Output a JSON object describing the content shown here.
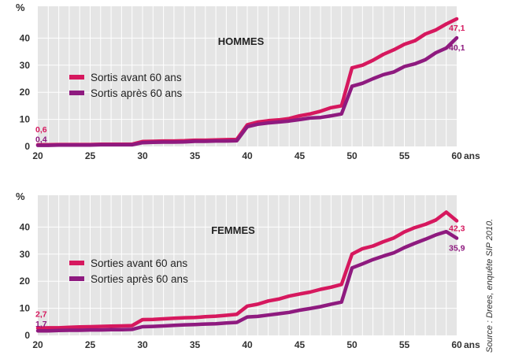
{
  "source": "Source : Drees, enquête SIP 2010.",
  "colors": {
    "avant": "#d6185e",
    "apres": "#8e1a7f",
    "panel": "#e5e5e5",
    "grid": "#ffffff"
  },
  "chart_data": [
    {
      "type": "line",
      "title": "HOMMES",
      "ylabel": "%",
      "xlabel": "",
      "xunit": "ans",
      "ylim": [
        0,
        50
      ],
      "xlim": [
        20,
        60
      ],
      "yticks": [
        0,
        10,
        20,
        30,
        40
      ],
      "xticks": [
        20,
        25,
        30,
        35,
        40,
        45,
        50,
        55,
        60
      ],
      "x": [
        20,
        21,
        22,
        23,
        24,
        25,
        26,
        27,
        28,
        29,
        30,
        31,
        32,
        33,
        34,
        35,
        36,
        37,
        38,
        39,
        40,
        41,
        42,
        43,
        44,
        45,
        46,
        47,
        48,
        49,
        50,
        51,
        52,
        53,
        54,
        55,
        56,
        57,
        58,
        59,
        60
      ],
      "series": [
        {
          "name": "Sortis avant 60 ans",
          "color_key": "avant",
          "values": [
            0.6,
            0.6,
            0.7,
            0.7,
            0.7,
            0.7,
            0.8,
            0.8,
            0.8,
            0.8,
            1.8,
            1.9,
            2.0,
            2.0,
            2.1,
            2.3,
            2.3,
            2.4,
            2.5,
            2.6,
            8.0,
            9.0,
            9.5,
            9.8,
            10.3,
            11.3,
            12.0,
            13.0,
            14.3,
            15.0,
            29.0,
            30.0,
            31.8,
            34.0,
            35.7,
            37.7,
            39.0,
            41.5,
            43.0,
            45.2,
            47.1
          ],
          "start_label": "0,6",
          "end_label": "47,1"
        },
        {
          "name": "Sortis après 60 ans",
          "color_key": "apres",
          "values": [
            0.4,
            0.4,
            0.5,
            0.5,
            0.5,
            0.5,
            0.6,
            0.6,
            0.6,
            0.6,
            1.4,
            1.5,
            1.6,
            1.6,
            1.7,
            1.9,
            1.9,
            2.0,
            2.0,
            2.1,
            7.3,
            8.2,
            8.7,
            9.0,
            9.4,
            9.9,
            10.5,
            10.7,
            11.3,
            12.0,
            22.2,
            23.3,
            25.0,
            26.5,
            27.5,
            29.5,
            30.5,
            32.0,
            34.6,
            36.3,
            40.1
          ],
          "start_label": "0,4",
          "end_label": "40,1"
        }
      ]
    },
    {
      "type": "line",
      "title": "FEMMES",
      "ylabel": "%",
      "xlabel": "",
      "xunit": "ans",
      "ylim": [
        0,
        50
      ],
      "xlim": [
        20,
        60
      ],
      "yticks": [
        0,
        10,
        20,
        30,
        40
      ],
      "xticks": [
        20,
        25,
        30,
        35,
        40,
        45,
        50,
        55,
        60
      ],
      "x": [
        20,
        21,
        22,
        23,
        24,
        25,
        26,
        27,
        28,
        29,
        30,
        31,
        32,
        33,
        34,
        35,
        36,
        37,
        38,
        39,
        40,
        41,
        42,
        43,
        44,
        45,
        46,
        47,
        48,
        49,
        50,
        51,
        52,
        53,
        54,
        55,
        56,
        57,
        58,
        59,
        60
      ],
      "series": [
        {
          "name": "Sorties avant 60 ans",
          "color_key": "avant",
          "values": [
            2.7,
            2.8,
            2.8,
            3.0,
            3.1,
            3.2,
            3.3,
            3.4,
            3.5,
            3.6,
            5.8,
            5.9,
            6.1,
            6.3,
            6.5,
            6.6,
            6.9,
            7.1,
            7.4,
            7.8,
            10.8,
            11.5,
            12.7,
            13.4,
            14.5,
            15.3,
            16.0,
            17.0,
            17.8,
            18.8,
            30.0,
            32.0,
            33.0,
            34.6,
            36.0,
            38.2,
            39.8,
            41.0,
            42.6,
            45.5,
            42.3
          ],
          "start_label": "2,7",
          "end_label": "42,3"
        },
        {
          "name": "Sorties après 60 ans",
          "color_key": "apres",
          "values": [
            1.7,
            1.7,
            1.8,
            1.9,
            1.9,
            2.0,
            2.0,
            2.1,
            2.1,
            2.2,
            3.2,
            3.3,
            3.5,
            3.7,
            3.9,
            4.0,
            4.2,
            4.3,
            4.6,
            4.8,
            6.8,
            7.0,
            7.5,
            8.0,
            8.5,
            9.3,
            9.9,
            10.6,
            11.5,
            12.3,
            24.9,
            26.4,
            28.0,
            29.3,
            30.5,
            32.4,
            34.0,
            35.5,
            37.1,
            38.3,
            35.9
          ],
          "start_label": "1,7",
          "end_label": "35,9"
        }
      ]
    }
  ]
}
